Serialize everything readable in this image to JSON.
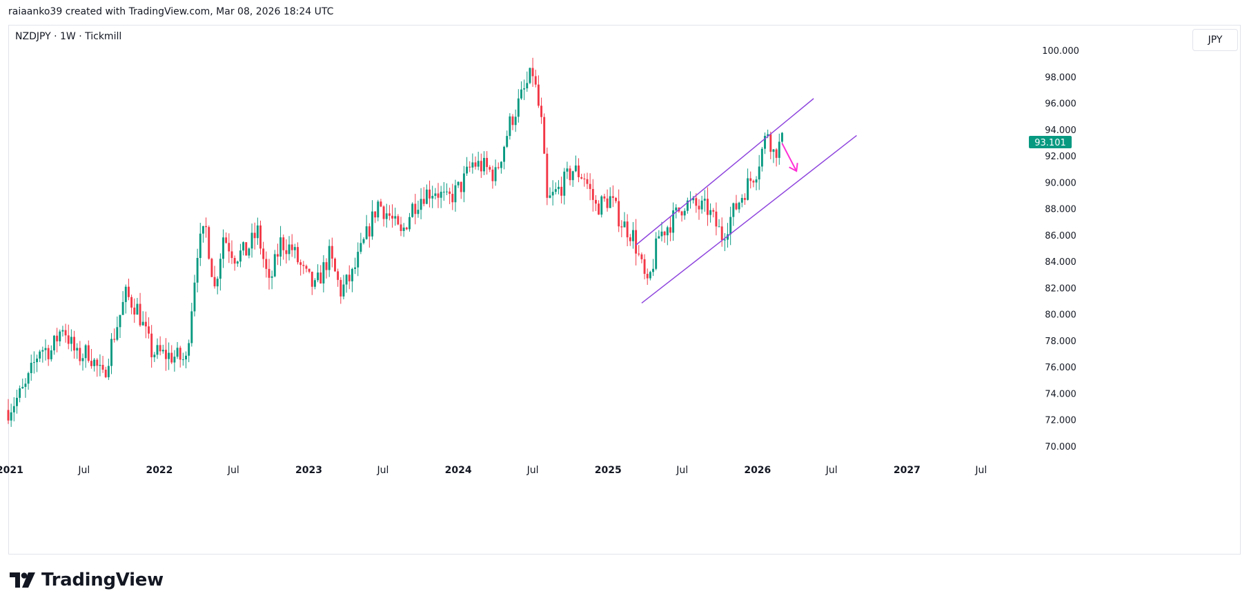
{
  "header": {
    "attribution": "raiaanko39 created with TradingView.com, Mar 08, 2026 18:24 UTC",
    "symbol": "NZDJPY · 1W · Tickmill"
  },
  "currency_button": {
    "label": "JPY"
  },
  "footer": {
    "brand": "TradingView",
    "logo_icon": "tradingview-logo-icon"
  },
  "colors": {
    "up": "#089981",
    "down": "#f23645",
    "channel": "#8e44dd",
    "arrow": "#ff2fd6",
    "price_tag": "#089981"
  },
  "chart_data": {
    "type": "candlestick",
    "title": "NZDJPY · 1W · Tickmill",
    "ylim": [
      68.8,
      101.0
    ],
    "yticks": [
      100,
      98,
      96,
      94,
      92,
      90,
      88,
      86,
      84,
      82,
      80,
      78,
      76,
      74,
      72,
      70
    ],
    "ytick_labels": [
      "100.000",
      "98.000",
      "96.000",
      "94.000",
      "92.000",
      "90.000",
      "88.000",
      "86.000",
      "84.000",
      "82.000",
      "80.000",
      "78.000",
      "76.000",
      "74.000",
      "72.000",
      "70.000"
    ],
    "xlim": [
      "2020-12-28",
      "2027-09-27"
    ],
    "xticks": [
      {
        "date": "2021-01-01",
        "label": "2021",
        "year": true
      },
      {
        "date": "2021-07-01",
        "label": "Jul",
        "year": false
      },
      {
        "date": "2022-01-01",
        "label": "2022",
        "year": true
      },
      {
        "date": "2022-07-01",
        "label": "Jul",
        "year": false
      },
      {
        "date": "2023-01-01",
        "label": "2023",
        "year": true
      },
      {
        "date": "2023-07-01",
        "label": "Jul",
        "year": false
      },
      {
        "date": "2024-01-01",
        "label": "2024",
        "year": true
      },
      {
        "date": "2024-07-01",
        "label": "Jul",
        "year": false
      },
      {
        "date": "2025-01-01",
        "label": "2025",
        "year": true
      },
      {
        "date": "2025-07-01",
        "label": "Jul",
        "year": false
      },
      {
        "date": "2026-01-01",
        "label": "2026",
        "year": true
      },
      {
        "date": "2026-07-01",
        "label": "Jul",
        "year": false
      },
      {
        "date": "2027-01-01",
        "label": "2027",
        "year": true
      },
      {
        "date": "2027-07-01",
        "label": "Jul",
        "year": false
      }
    ],
    "last_price": 93.101,
    "last_price_label": "93.101",
    "price_path": [
      [
        "2020-12-28",
        72.8
      ],
      [
        "2021-02-08",
        74.5
      ],
      [
        "2021-03-15",
        77.5
      ],
      [
        "2021-04-12",
        77.3
      ],
      [
        "2021-05-10",
        79.2
      ],
      [
        "2021-06-14",
        76.8
      ],
      [
        "2021-07-12",
        77.2
      ],
      [
        "2021-08-16",
        75.2
      ],
      [
        "2021-09-06",
        77.8
      ],
      [
        "2021-10-11",
        81.5
      ],
      [
        "2021-11-08",
        80.5
      ],
      [
        "2021-12-13",
        77.2
      ],
      [
        "2022-01-10",
        77.0
      ],
      [
        "2022-02-14",
        76.8
      ],
      [
        "2022-03-07",
        76.5
      ],
      [
        "2022-04-04",
        85.0
      ],
      [
        "2022-04-25",
        86.5
      ],
      [
        "2022-05-16",
        82.0
      ],
      [
        "2022-06-06",
        86.0
      ],
      [
        "2022-07-04",
        84.5
      ],
      [
        "2022-08-01",
        84.8
      ],
      [
        "2022-08-29",
        86.3
      ],
      [
        "2022-09-26",
        82.2
      ],
      [
        "2022-10-24",
        85.5
      ],
      [
        "2022-11-21",
        85.0
      ],
      [
        "2022-12-19",
        83.2
      ],
      [
        "2023-01-16",
        82.0
      ],
      [
        "2023-02-20",
        84.5
      ],
      [
        "2023-03-20",
        81.8
      ],
      [
        "2023-04-17",
        83.0
      ],
      [
        "2023-05-22",
        86.0
      ],
      [
        "2023-06-19",
        88.5
      ],
      [
        "2023-07-17",
        87.5
      ],
      [
        "2023-08-14",
        86.0
      ],
      [
        "2023-09-11",
        88.2
      ],
      [
        "2023-10-09",
        89.2
      ],
      [
        "2023-11-06",
        89.5
      ],
      [
        "2023-12-04",
        88.6
      ],
      [
        "2024-01-08",
        89.8
      ],
      [
        "2024-02-05",
        91.5
      ],
      [
        "2024-03-04",
        91.2
      ],
      [
        "2024-04-01",
        90.6
      ],
      [
        "2024-05-06",
        94.5
      ],
      [
        "2024-06-03",
        96.5
      ],
      [
        "2024-07-01",
        98.4
      ],
      [
        "2024-07-22",
        94.5
      ],
      [
        "2024-08-05",
        88.5
      ],
      [
        "2024-09-02",
        89.5
      ],
      [
        "2024-10-07",
        91.0
      ],
      [
        "2024-11-04",
        90.5
      ],
      [
        "2024-12-02",
        88.2
      ],
      [
        "2025-01-06",
        88.8
      ],
      [
        "2025-02-03",
        87.0
      ],
      [
        "2025-03-03",
        86.0
      ],
      [
        "2025-04-07",
        82.0
      ],
      [
        "2025-05-05",
        86.0
      ],
      [
        "2025-06-02",
        87.0
      ],
      [
        "2025-07-07",
        88.5
      ],
      [
        "2025-08-04",
        88.2
      ],
      [
        "2025-09-01",
        88.0
      ],
      [
        "2025-10-06",
        86.0
      ],
      [
        "2025-11-03",
        87.8
      ],
      [
        "2025-12-01",
        89.5
      ],
      [
        "2025-12-29",
        91.0
      ],
      [
        "2026-01-26",
        94.0
      ],
      [
        "2026-02-09",
        92.3
      ],
      [
        "2026-03-02",
        93.1
      ]
    ],
    "annotations": {
      "channel_upper": [
        [
          "2025-03-10",
          85.3
        ],
        [
          "2026-05-18",
          96.4
        ]
      ],
      "channel_lower": [
        [
          "2025-03-24",
          80.9
        ],
        [
          "2026-08-31",
          93.6
        ]
      ],
      "down_arrow": [
        [
          "2026-03-02",
          93.0
        ],
        [
          "2026-04-06",
          90.9
        ]
      ]
    }
  }
}
